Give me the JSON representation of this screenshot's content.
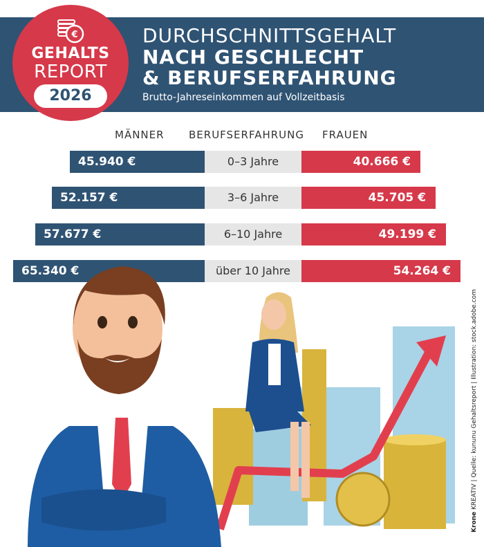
{
  "badge": {
    "line1": "GEHALTS",
    "line2": "REPORT",
    "year": "2026"
  },
  "title": {
    "line1": "DURCHSCHNITTSGEHALT",
    "line2": "NACH GESCHLECHT",
    "line3": "& BERUFSERFAHRUNG",
    "subtitle": "Brutto-Jahreseinkommen auf Vollzeitbasis"
  },
  "columns": {
    "men": "MÄNNER",
    "experience": "BERUFSERFAHRUNG",
    "women": "FRAUEN"
  },
  "chart_data": {
    "type": "bar",
    "categories": [
      "0–3 Jahre",
      "3–6 Jahre",
      "6–10 Jahre",
      "über 10 Jahre"
    ],
    "series": [
      {
        "name": "MÄNNER",
        "values": [
          45940,
          52157,
          57677,
          65340
        ],
        "labels": [
          "45.940 €",
          "52.157 €",
          "57.677 €",
          "65.340 €"
        ],
        "color": "#2f5373"
      },
      {
        "name": "FRAUEN",
        "values": [
          40666,
          45705,
          49199,
          54264
        ],
        "labels": [
          "40.666 €",
          "45.705 €",
          "49.199 €",
          "54.264 €"
        ],
        "color": "#d6394a"
      }
    ],
    "title": "DURCHSCHNITTSGEHALT NACH GESCHLECHT & BERUFSERFAHRUNG",
    "subtitle": "Brutto-Jahreseinkommen auf Vollzeitbasis"
  },
  "credit": {
    "brand_bold": "Krone",
    "brand_rest": " KREATIV",
    "source": " | Quelle: kununu Gehaltsreport | Illustration: stock.adobe.com"
  },
  "colors": {
    "blue": "#2f5373",
    "red": "#d6394a",
    "grey": "#e6e6e6"
  }
}
